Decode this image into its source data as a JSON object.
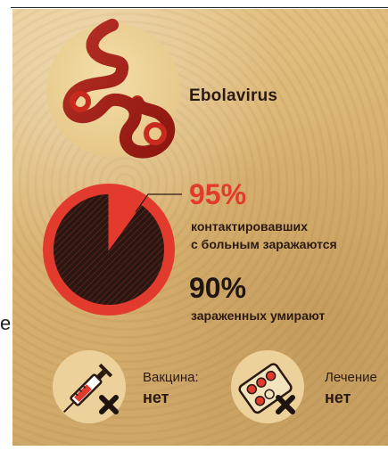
{
  "virus": {
    "name": "Ebolavirus"
  },
  "stats": [
    {
      "percent": "95%",
      "percent_value": 95,
      "lines": [
        "контактировавших",
        "с больным заражаются"
      ]
    },
    {
      "percent": "90%",
      "percent_value": 90,
      "lines": [
        "зараженных умирают"
      ]
    }
  ],
  "items": [
    {
      "label": "Вакцина:",
      "value": "нет",
      "icon": "syringe-icon"
    },
    {
      "label": "Лечение",
      "value": "нет",
      "icon": "pills-icon"
    }
  ],
  "edge_letter": "e",
  "colors": {
    "accent_red": "#e23a2c",
    "dark": "#2b1a12",
    "background": "#d9b271"
  }
}
